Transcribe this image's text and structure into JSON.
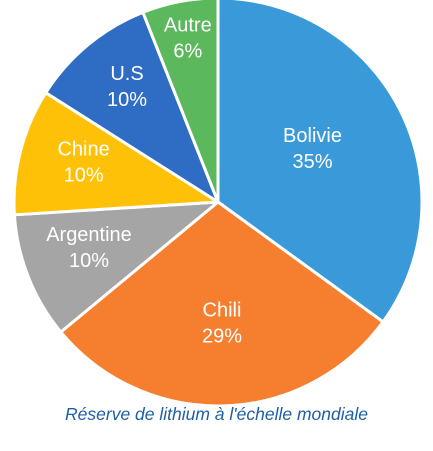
{
  "chart_data": {
    "type": "pie",
    "title": "Réserve de lithium à l'échelle mondiale",
    "start": "12 o'clock, clockwise",
    "legend": "none",
    "slices": [
      {
        "name": "Bolivie",
        "value": 35,
        "label": "35%",
        "color": "#3a9ad9"
      },
      {
        "name": "Chili",
        "value": 29,
        "label": "29%",
        "color": "#f67f2f"
      },
      {
        "name": "Argentine",
        "value": 10,
        "label": "10%",
        "color": "#a5a5a5"
      },
      {
        "name": "Chine",
        "value": 10,
        "label": "10%",
        "color": "#ffc107"
      },
      {
        "name": "U.S",
        "value": 10,
        "label": "10%",
        "color": "#2f6cc4"
      },
      {
        "name": "Autre",
        "value": 6,
        "label": "6%",
        "color": "#5cb85c"
      }
    ]
  }
}
